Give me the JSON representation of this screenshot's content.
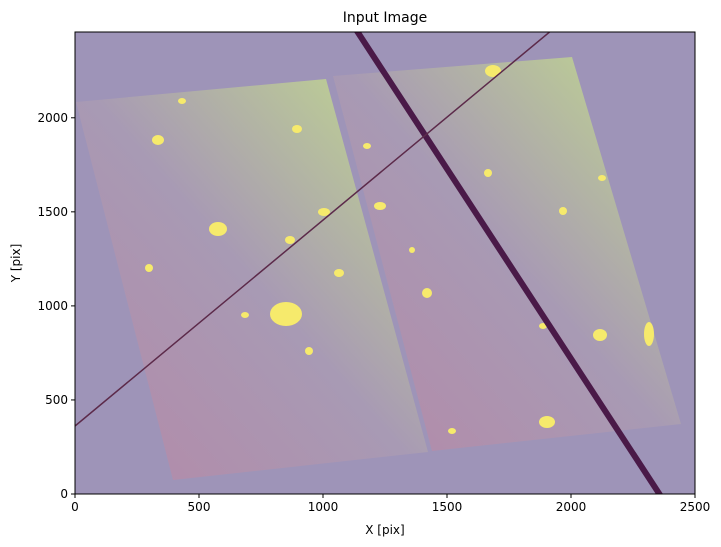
{
  "chart_data": {
    "type": "image",
    "title": "Input Image",
    "x_label": "X [pix]",
    "y_label": "Y [pix]",
    "xlim": [
      0,
      2500
    ],
    "ylim": [
      0,
      2456
    ],
    "xticks": [
      0,
      500,
      1000,
      1500,
      2000,
      2500
    ],
    "yticks": [
      0,
      500,
      1000,
      1500,
      2000
    ]
  }
}
